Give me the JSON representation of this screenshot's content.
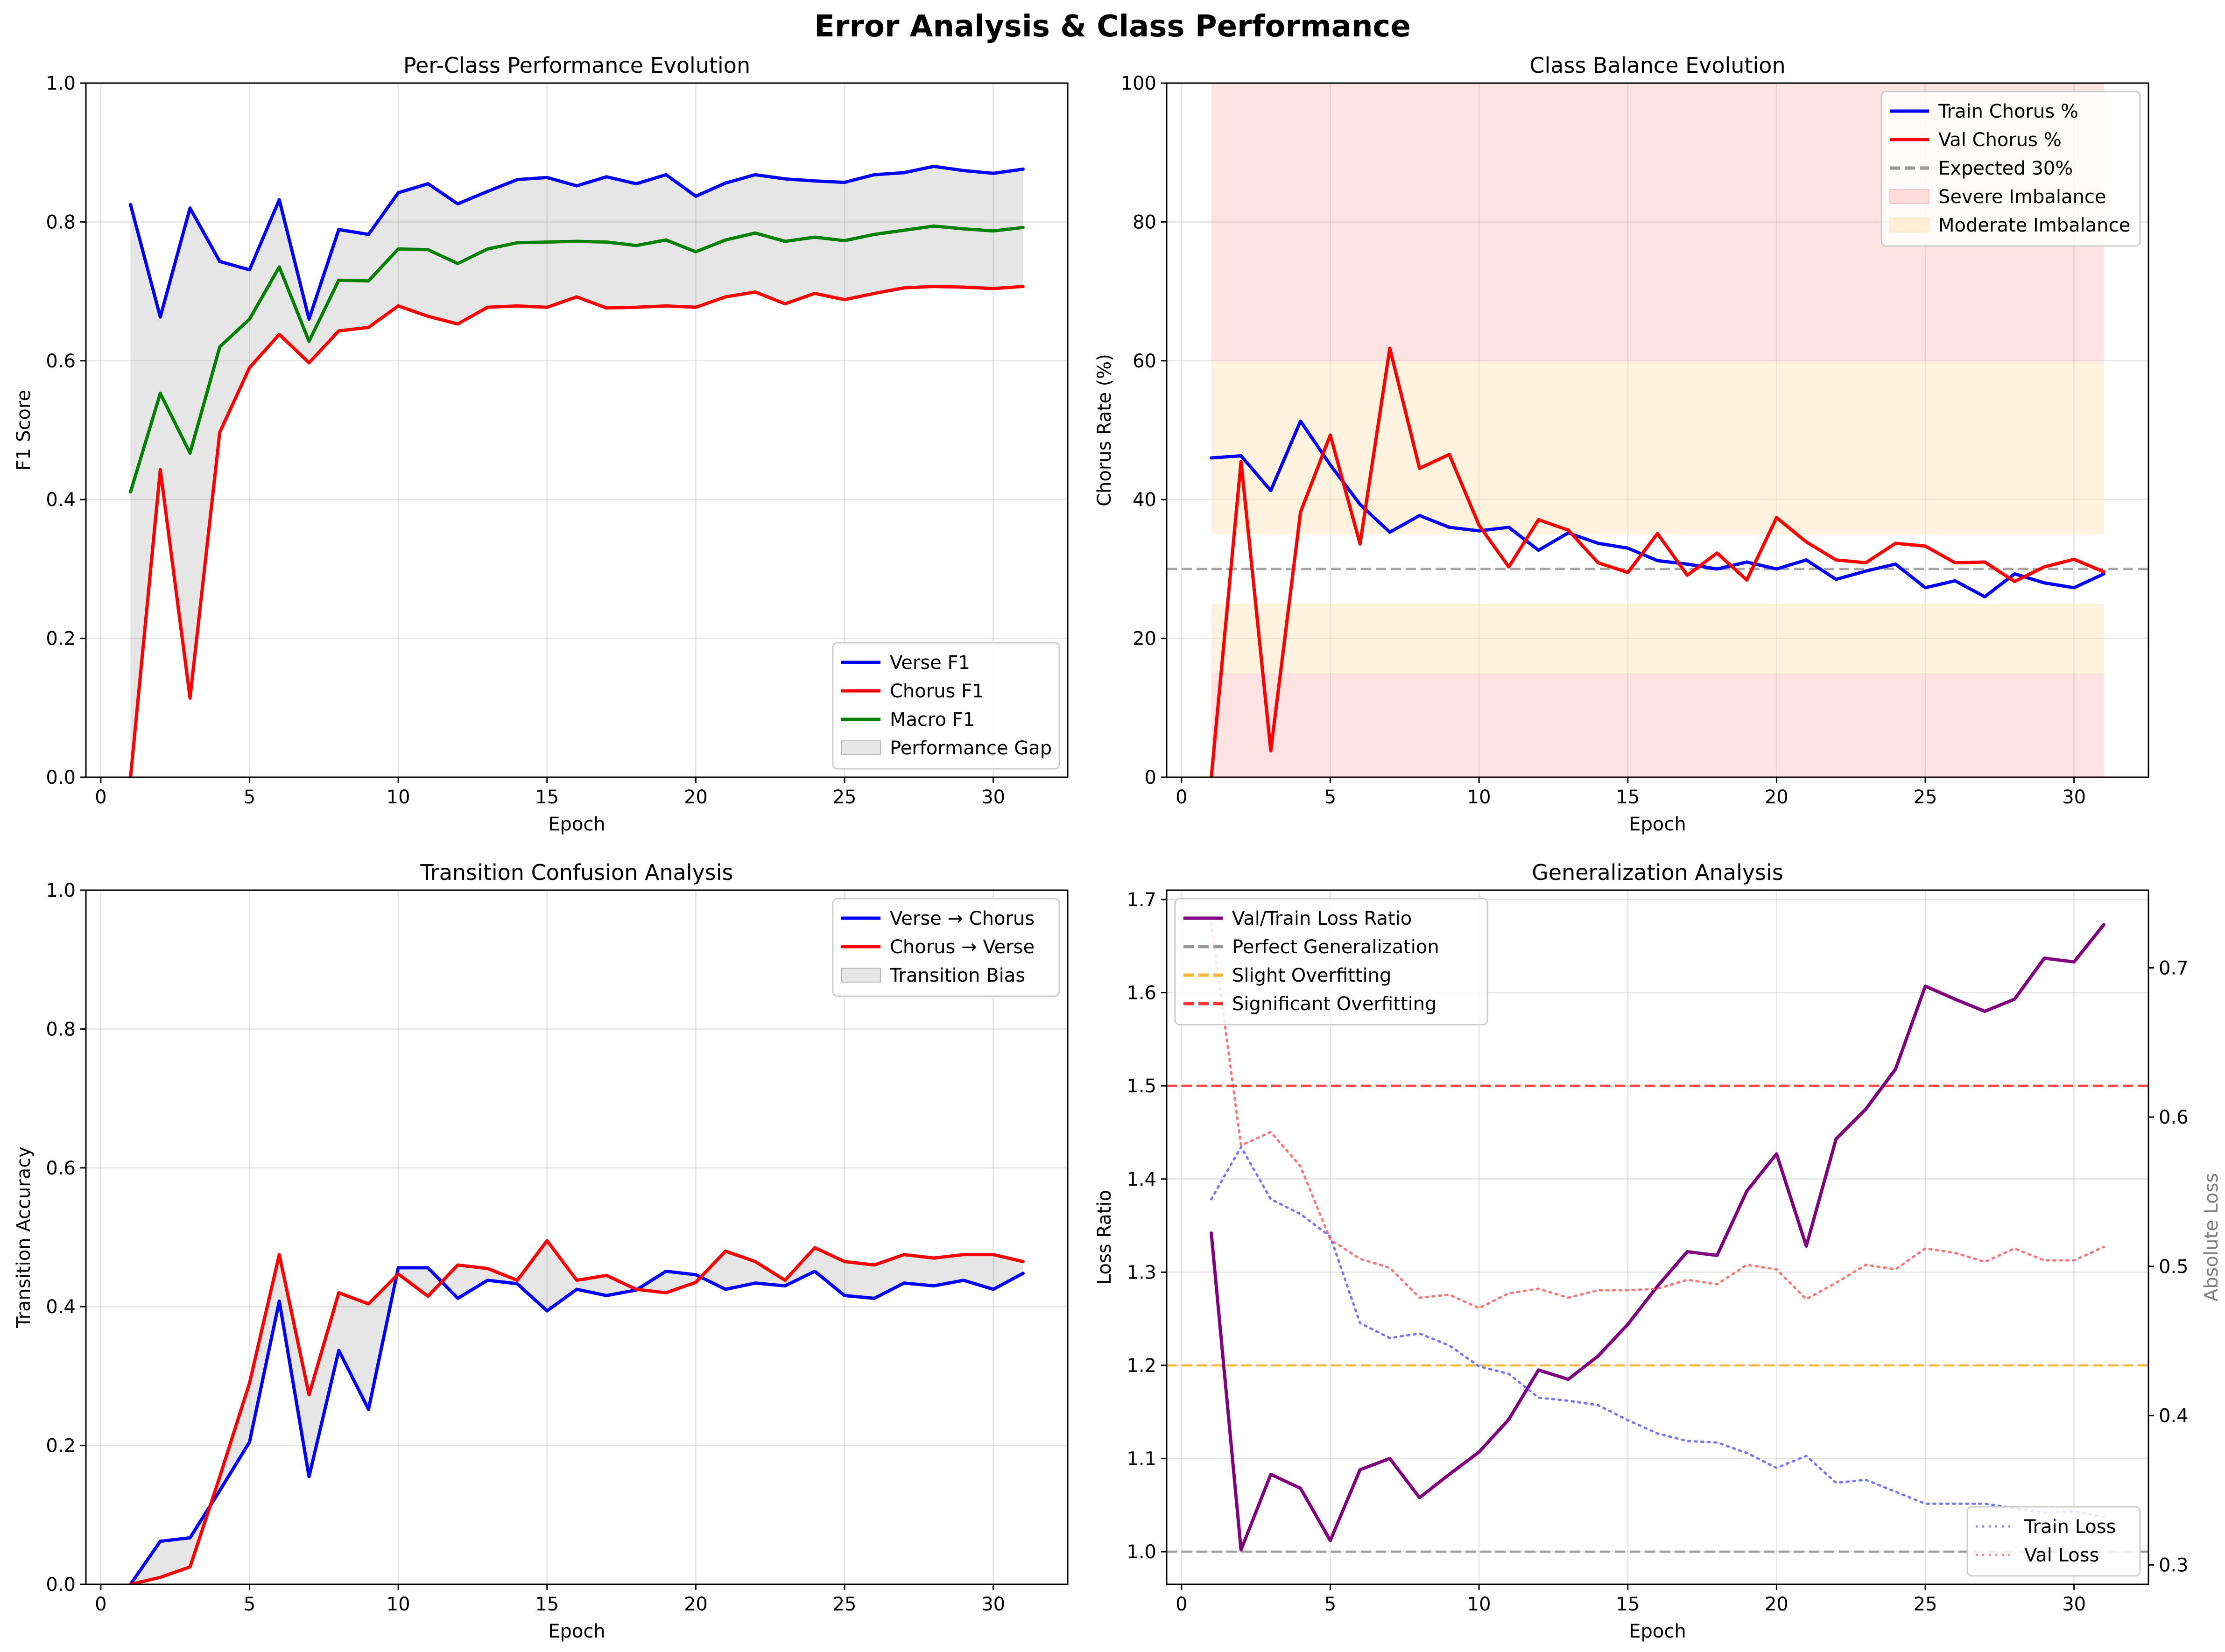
{
  "figure_title": "Error Analysis & Class Performance",
  "chart_data": [
    {
      "id": "f1",
      "type": "line",
      "title": "Per-Class Performance Evolution",
      "xlabel": "Epoch",
      "ylabel": "F1 Score",
      "xlim": [
        -0.5,
        32.5
      ],
      "ylim": [
        0,
        1.0
      ],
      "xticks": [
        0,
        5,
        10,
        15,
        20,
        25,
        30
      ],
      "yticks": [
        0.0,
        0.2,
        0.4,
        0.6,
        0.8,
        1.0
      ],
      "ytick_labels": [
        "0.0",
        "0.2",
        "0.4",
        "0.6",
        "0.8",
        "1.0"
      ],
      "grid": true,
      "legend_position": "lower right",
      "x": [
        1,
        2,
        3,
        4,
        5,
        6,
        7,
        8,
        9,
        10,
        11,
        12,
        13,
        14,
        15,
        16,
        17,
        18,
        19,
        20,
        21,
        22,
        23,
        24,
        25,
        26,
        27,
        28,
        29,
        30,
        31
      ],
      "series": [
        {
          "name": "Verse F1",
          "color": "#0000ff",
          "values": [
            0.825,
            0.663,
            0.82,
            0.743,
            0.731,
            0.832,
            0.66,
            0.789,
            0.782,
            0.842,
            0.855,
            0.826,
            0.844,
            0.861,
            0.864,
            0.852,
            0.865,
            0.855,
            0.868,
            0.837,
            0.856,
            0.868,
            0.862,
            0.859,
            0.857,
            0.868,
            0.871,
            0.88,
            0.874,
            0.87,
            0.876
          ]
        },
        {
          "name": "Chorus F1",
          "color": "#ff0000",
          "values": [
            0.0,
            0.443,
            0.114,
            0.497,
            0.59,
            0.638,
            0.597,
            0.643,
            0.648,
            0.679,
            0.664,
            0.653,
            0.677,
            0.679,
            0.677,
            0.692,
            0.676,
            0.677,
            0.679,
            0.677,
            0.692,
            0.699,
            0.682,
            0.697,
            0.688,
            0.697,
            0.705,
            0.707,
            0.706,
            0.704,
            0.707
          ]
        },
        {
          "name": "Macro F1",
          "color": "#008000",
          "values": [
            0.411,
            0.553,
            0.467,
            0.62,
            0.66,
            0.735,
            0.628,
            0.716,
            0.715,
            0.761,
            0.76,
            0.74,
            0.761,
            0.77,
            0.771,
            0.772,
            0.771,
            0.766,
            0.774,
            0.757,
            0.774,
            0.784,
            0.772,
            0.778,
            0.773,
            0.782,
            0.788,
            0.794,
            0.79,
            0.787,
            0.792
          ]
        }
      ],
      "fill": {
        "name": "Performance Gap",
        "between": [
          "Verse F1",
          "Chorus F1"
        ],
        "color": "#808080"
      }
    },
    {
      "id": "balance",
      "type": "line",
      "title": "Class Balance Evolution",
      "xlabel": "Epoch",
      "ylabel": "Chorus Rate (%)",
      "xlim": [
        -0.5,
        32.5
      ],
      "ylim": [
        0,
        100
      ],
      "xticks": [
        0,
        5,
        10,
        15,
        20,
        25,
        30
      ],
      "yticks": [
        0,
        20,
        40,
        60,
        80,
        100
      ],
      "ytick_labels": [
        "0",
        "20",
        "40",
        "60",
        "80",
        "100"
      ],
      "grid": true,
      "legend_position": "upper right",
      "x": [
        1,
        2,
        3,
        4,
        5,
        6,
        7,
        8,
        9,
        10,
        11,
        12,
        13,
        14,
        15,
        16,
        17,
        18,
        19,
        20,
        21,
        22,
        23,
        24,
        25,
        26,
        27,
        28,
        29,
        30,
        31
      ],
      "series": [
        {
          "name": "Train Chorus %",
          "color": "#0000ff",
          "values": [
            46.0,
            46.3,
            41.3,
            51.3,
            45.0,
            39.3,
            35.3,
            37.7,
            36.0,
            35.5,
            36.0,
            32.7,
            35.2,
            33.7,
            33.0,
            31.2,
            30.7,
            30.0,
            31.0,
            30.0,
            31.3,
            28.5,
            29.7,
            30.7,
            27.3,
            28.3,
            26.0,
            29.3,
            28.0,
            27.3,
            29.3
          ]
        },
        {
          "name": "Val Chorus %",
          "color": "#ff0000",
          "values": [
            0.0,
            45.5,
            3.8,
            38.2,
            49.3,
            33.6,
            61.8,
            44.5,
            46.5,
            36.3,
            30.3,
            37.1,
            35.6,
            30.9,
            29.5,
            35.1,
            29.1,
            32.3,
            28.4,
            37.4,
            33.9,
            31.3,
            30.9,
            33.7,
            33.3,
            30.9,
            31.0,
            28.2,
            30.3,
            31.4,
            29.6
          ]
        }
      ],
      "reference_lines": [
        {
          "name": "Expected 30%",
          "y": 30,
          "color": "#808080",
          "style": "dashed"
        }
      ],
      "bands": [
        {
          "name": "Severe Imbalance",
          "color": "#ff9999",
          "ranges": [
            [
              60,
              100
            ],
            [
              0,
              15
            ]
          ],
          "x_range": [
            1,
            31
          ]
        },
        {
          "name": "Moderate Imbalance",
          "color": "#ffe0b0",
          "ranges": [
            [
              35,
              60
            ],
            [
              15,
              25
            ]
          ],
          "x_range": [
            1,
            31
          ]
        }
      ]
    },
    {
      "id": "transition",
      "type": "line",
      "title": "Transition Confusion Analysis",
      "xlabel": "Epoch",
      "ylabel": "Transition Accuracy",
      "xlim": [
        -0.5,
        32.5
      ],
      "ylim": [
        0,
        1.0
      ],
      "xticks": [
        0,
        5,
        10,
        15,
        20,
        25,
        30
      ],
      "yticks": [
        0.0,
        0.2,
        0.4,
        0.6,
        0.8,
        1.0
      ],
      "ytick_labels": [
        "0.0",
        "0.2",
        "0.4",
        "0.6",
        "0.8",
        "1.0"
      ],
      "grid": true,
      "legend_position": "upper right",
      "x": [
        1,
        2,
        3,
        4,
        5,
        6,
        7,
        8,
        9,
        10,
        11,
        12,
        13,
        14,
        15,
        16,
        17,
        18,
        19,
        20,
        21,
        22,
        23,
        24,
        25,
        26,
        27,
        28,
        29,
        30,
        31
      ],
      "series": [
        {
          "name": "Verse → Chorus",
          "color": "#0000ff",
          "values": [
            0.0,
            0.062,
            0.067,
            0.135,
            0.205,
            0.408,
            0.155,
            0.337,
            0.252,
            0.456,
            0.456,
            0.412,
            0.438,
            0.433,
            0.394,
            0.425,
            0.416,
            0.424,
            0.451,
            0.446,
            0.425,
            0.434,
            0.43,
            0.451,
            0.416,
            0.412,
            0.434,
            0.43,
            0.438,
            0.425,
            0.448
          ]
        },
        {
          "name": "Chorus → Verse",
          "color": "#ff0000",
          "values": [
            0.0,
            0.01,
            0.025,
            0.155,
            0.29,
            0.475,
            0.273,
            0.42,
            0.404,
            0.447,
            0.415,
            0.46,
            0.455,
            0.438,
            0.495,
            0.438,
            0.445,
            0.425,
            0.42,
            0.435,
            0.48,
            0.465,
            0.438,
            0.485,
            0.465,
            0.46,
            0.475,
            0.47,
            0.475,
            0.475,
            0.465
          ]
        }
      ],
      "fill": {
        "name": "Transition Bias",
        "between": [
          "Verse → Chorus",
          "Chorus → Verse"
        ],
        "color": "#808080"
      }
    },
    {
      "id": "generalization",
      "type": "line",
      "title": "Generalization Analysis",
      "xlabel": "Epoch",
      "ylabel": "Loss Ratio",
      "y2label": "Absolute Loss",
      "xlim": [
        -0.5,
        32.5
      ],
      "ylim": [
        0.965,
        1.71
      ],
      "y2lim": [
        0.287,
        0.752
      ],
      "xticks": [
        0,
        5,
        10,
        15,
        20,
        25,
        30
      ],
      "yticks": [
        1.0,
        1.1,
        1.2,
        1.3,
        1.4,
        1.5,
        1.6,
        1.7
      ],
      "ytick_labels": [
        "1.0",
        "1.1",
        "1.2",
        "1.3",
        "1.4",
        "1.5",
        "1.6",
        "1.7"
      ],
      "y2ticks": [
        0.3,
        0.4,
        0.5,
        0.6,
        0.7
      ],
      "y2tick_labels": [
        "0.3",
        "0.4",
        "0.5",
        "0.6",
        "0.7"
      ],
      "grid": true,
      "legend_position": "upper left",
      "legend2_position": "lower right",
      "x": [
        1,
        2,
        3,
        4,
        5,
        6,
        7,
        8,
        9,
        10,
        11,
        12,
        13,
        14,
        15,
        16,
        17,
        18,
        19,
        20,
        21,
        22,
        23,
        24,
        25,
        26,
        27,
        28,
        29,
        30,
        31
      ],
      "series": [
        {
          "name": "Val/Train Loss Ratio",
          "color": "#800080",
          "axis": "left",
          "values": [
            1.342,
            1.002,
            1.083,
            1.068,
            1.012,
            1.088,
            1.1,
            1.058,
            1.083,
            1.107,
            1.142,
            1.195,
            1.185,
            1.21,
            1.244,
            1.285,
            1.322,
            1.318,
            1.387,
            1.427,
            1.328,
            1.443,
            1.475,
            1.518,
            1.607,
            1.593,
            1.58,
            1.593,
            1.637,
            1.633,
            1.673
          ]
        },
        {
          "name": "Train Loss",
          "color": "#6666ff",
          "axis": "right",
          "style": "dotted",
          "values": [
            0.545,
            0.58,
            0.545,
            0.535,
            0.52,
            0.462,
            0.452,
            0.455,
            0.447,
            0.433,
            0.428,
            0.412,
            0.41,
            0.407,
            0.397,
            0.388,
            0.383,
            0.382,
            0.375,
            0.365,
            0.373,
            0.355,
            0.357,
            0.349,
            0.341,
            0.341,
            0.341,
            0.338,
            0.335,
            0.336,
            0.332
          ]
        },
        {
          "name": "Val Loss",
          "color": "#ff6666",
          "axis": "right",
          "style": "dotted",
          "values": [
            0.73,
            0.581,
            0.59,
            0.567,
            0.518,
            0.505,
            0.499,
            0.479,
            0.481,
            0.472,
            0.482,
            0.485,
            0.479,
            0.484,
            0.484,
            0.485,
            0.491,
            0.488,
            0.501,
            0.498,
            0.478,
            0.489,
            0.501,
            0.498,
            0.512,
            0.509,
            0.503,
            0.512,
            0.504,
            0.504,
            0.513
          ]
        }
      ],
      "reference_lines": [
        {
          "name": "Perfect Generalization",
          "y": 1.0,
          "color": "#808080",
          "style": "dashed"
        },
        {
          "name": "Slight Overfitting",
          "y": 1.2,
          "color": "#ffa500",
          "style": "dashed"
        },
        {
          "name": "Significant Overfitting",
          "y": 1.5,
          "color": "#ff0000",
          "style": "dashed"
        }
      ]
    }
  ]
}
